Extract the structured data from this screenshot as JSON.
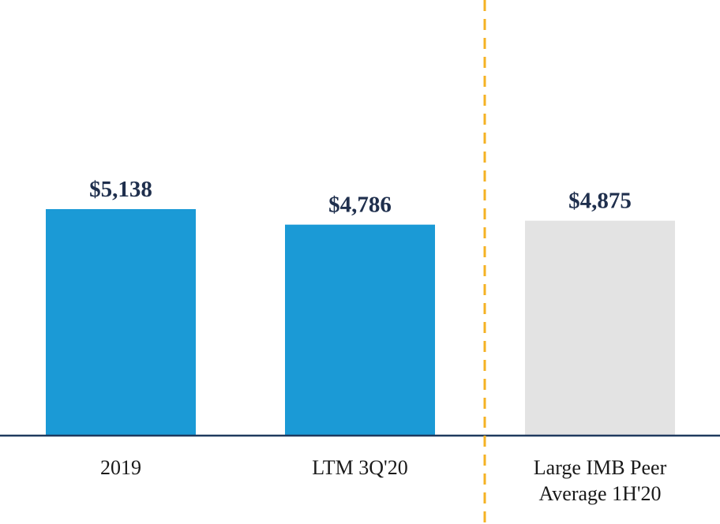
{
  "chart_data": {
    "type": "bar",
    "title": "",
    "xlabel": "",
    "ylabel": "",
    "ylim": [
      0,
      5500
    ],
    "categories": [
      {
        "label_lines": [
          "2019"
        ]
      },
      {
        "label_lines": [
          "LTM 3Q'20"
        ]
      },
      {
        "label_lines": [
          "Large IMB Peer",
          "Average 1H'20"
        ]
      }
    ],
    "values": [
      5138,
      4786,
      4875
    ],
    "value_labels": [
      "$5,138",
      "$4,786",
      "$4,875"
    ],
    "bar_colors": [
      "#1b9ad6",
      "#1b9ad6",
      "#e3e3e3"
    ],
    "separator": {
      "style": "dashed",
      "color": "#f4b223",
      "between": "LTM 3Q'20 and Large IMB Peer Average 1H'20"
    },
    "baseline_color": "#1f3a5f"
  }
}
